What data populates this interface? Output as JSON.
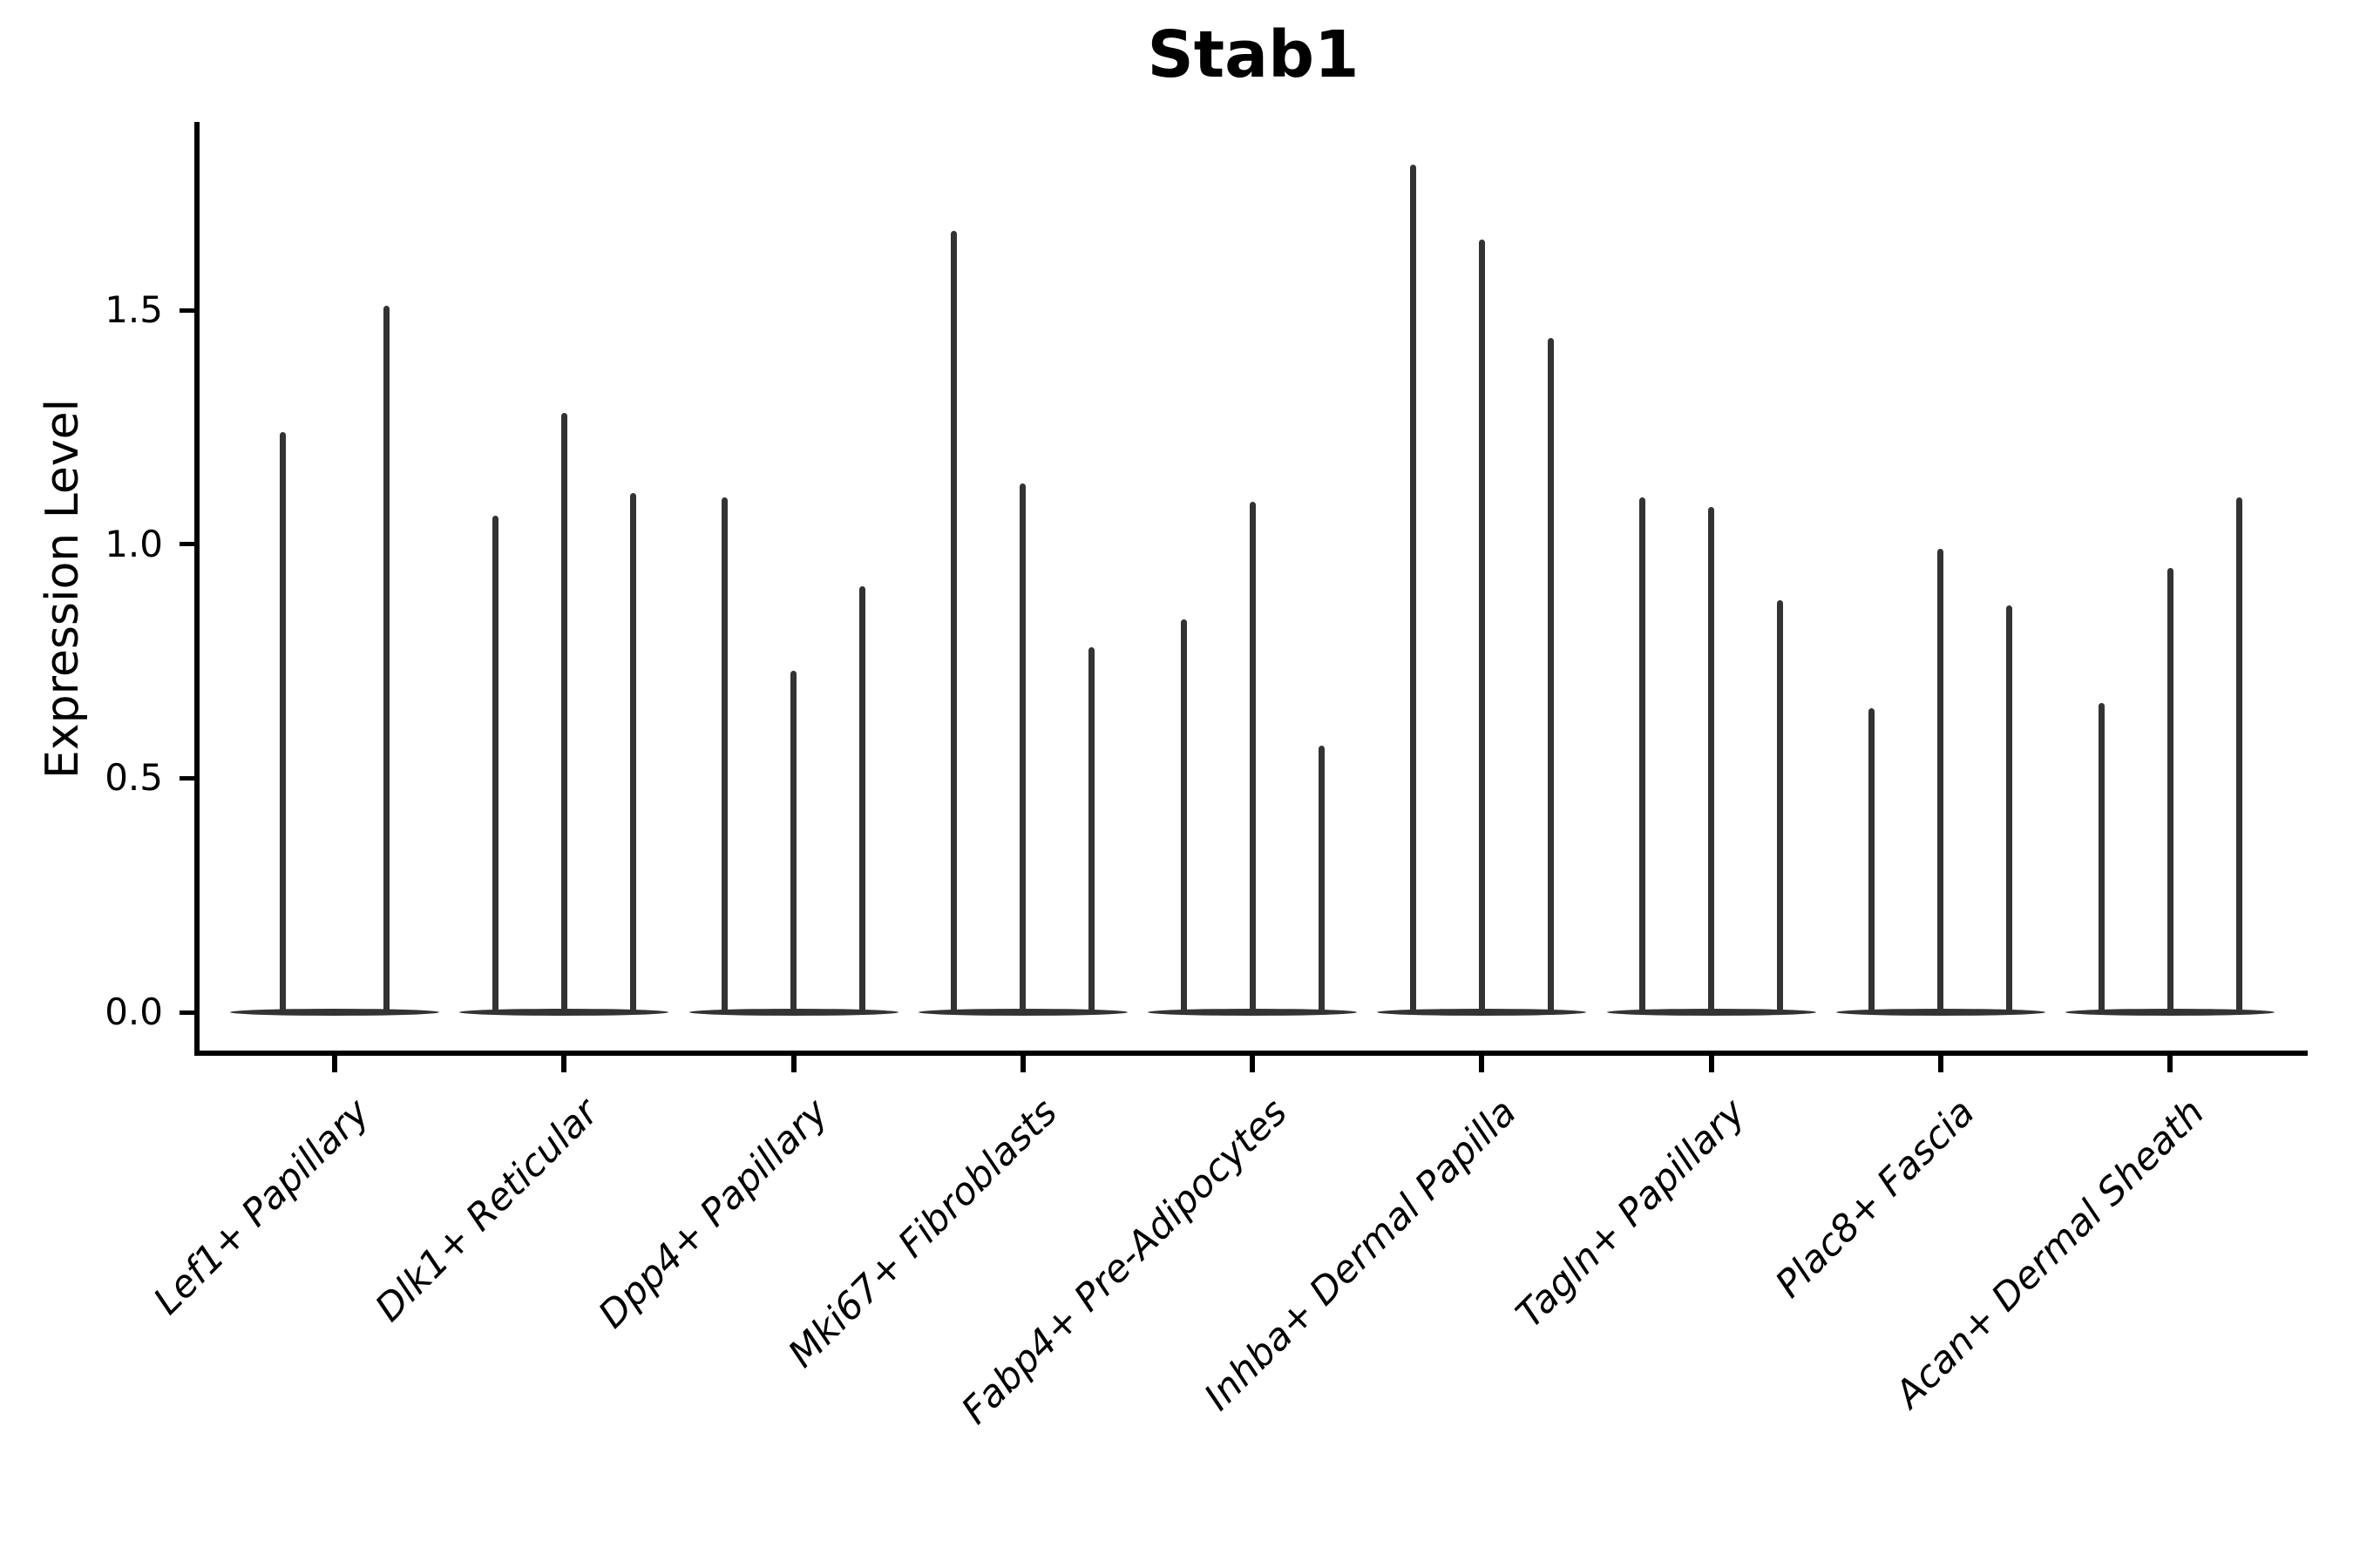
{
  "figure": {
    "title": "Stab1",
    "background_color": "#ffffff"
  },
  "chart_data": {
    "type": "violin",
    "style": "needle-violins (single-cell expression; violins are flat at 0 with thin spikes up to the max expression value)",
    "title": "Stab1",
    "xlabel": "",
    "ylabel": "Expression Level",
    "ylim": [
      -0.09,
      1.9
    ],
    "y_ticks": [
      0.0,
      0.5,
      1.0,
      1.5
    ],
    "y_tick_labels": [
      "0.0",
      "0.5",
      "1.0",
      "1.5"
    ],
    "grid": false,
    "legend": "none",
    "violin_color": "#333333",
    "axis_color": "#000000",
    "baseline_value": 0.0,
    "categories": [
      "Lef1+ Papillary",
      "Dlk1+ Reticular",
      "Dpp4+ Papillary",
      "Mki67+ Fibroblasts",
      "Fabp4+ Pre-Adipocytes",
      "Inhba+ Dermal Papilla",
      "Tagln+ Papillary",
      "Plac8+ Fascia",
      "Acan+ Dermal Sheath"
    ],
    "groups": [
      {
        "category": "Lef1+ Papillary",
        "violin_max_values": [
          1.24,
          1.51
        ]
      },
      {
        "category": "Dlk1+ Reticular",
        "violin_max_values": [
          1.06,
          1.28,
          1.11
        ]
      },
      {
        "category": "Dpp4+ Papillary",
        "violin_max_values": [
          1.1,
          0.73,
          0.91
        ]
      },
      {
        "category": "Mki67+ Fibroblasts",
        "violin_max_values": [
          1.67,
          1.13,
          0.78
        ]
      },
      {
        "category": "Fabp4+ Pre-Adipocytes",
        "violin_max_values": [
          0.84,
          1.09,
          0.57
        ]
      },
      {
        "category": "Inhba+ Dermal Papilla",
        "violin_max_values": [
          1.81,
          1.65,
          1.44
        ]
      },
      {
        "category": "Tagln+ Papillary",
        "violin_max_values": [
          1.1,
          1.08,
          0.88
        ]
      },
      {
        "category": "Plac8+ Fascia",
        "violin_max_values": [
          0.65,
          0.99,
          0.87
        ]
      },
      {
        "category": "Acan+ Dermal Sheath",
        "violin_max_values": [
          0.66,
          0.95,
          1.1
        ]
      }
    ]
  }
}
